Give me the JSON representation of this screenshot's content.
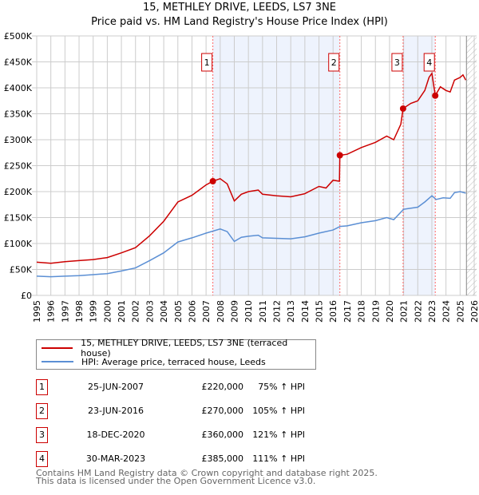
{
  "chart_data": {
    "type": "line",
    "title": "15, METHLEY DRIVE, LEEDS, LS7 3NE",
    "subtitle": "Price paid vs. HM Land Registry's House Price Index (HPI)",
    "xlim": [
      1995,
      2026
    ],
    "ylim": [
      0,
      500000
    ],
    "x_ticks": [
      "1995",
      "1996",
      "1997",
      "1998",
      "1999",
      "2000",
      "2001",
      "2002",
      "2003",
      "2004",
      "2005",
      "2006",
      "2007",
      "2008",
      "2009",
      "2010",
      "2011",
      "2012",
      "2013",
      "2014",
      "2015",
      "2016",
      "2017",
      "2018",
      "2019",
      "2020",
      "2021",
      "2022",
      "2023",
      "2024",
      "2025",
      "2026"
    ],
    "y_ticks": [
      {
        "v": 0,
        "label": "£0"
      },
      {
        "v": 50000,
        "label": "£50K"
      },
      {
        "v": 100000,
        "label": "£100K"
      },
      {
        "v": 150000,
        "label": "£150K"
      },
      {
        "v": 200000,
        "label": "£200K"
      },
      {
        "v": 250000,
        "label": "£250K"
      },
      {
        "v": 300000,
        "label": "£300K"
      },
      {
        "v": 350000,
        "label": "£350K"
      },
      {
        "v": 400000,
        "label": "£400K"
      },
      {
        "v": 450000,
        "label": "£450K"
      },
      {
        "v": 500000,
        "label": "£500K"
      }
    ],
    "grid": true,
    "legend_placement": "below",
    "series": [
      {
        "name": "15, METHLEY DRIVE, LEEDS, LS7 3NE (terraced house)",
        "color": "#cc0000",
        "x": [
          1995,
          1996,
          1997,
          1998,
          1999,
          2000,
          2001,
          2002,
          2003,
          2004,
          2005,
          2006,
          2007,
          2007.48,
          2008,
          2008.5,
          2009,
          2009.5,
          2010,
          2010.7,
          2011,
          2012,
          2013,
          2014,
          2015,
          2015.5,
          2016,
          2016.45,
          2016.48,
          2017,
          2018,
          2019,
          2019.8,
          2020.3,
          2020.8,
          2020.96,
          2021.5,
          2022,
          2022.5,
          2022.8,
          2023.0,
          2023.24,
          2023.6,
          2024,
          2024.3,
          2024.6,
          2025,
          2025.2,
          2025.4
        ],
        "y": [
          64000,
          62000,
          65000,
          67000,
          69000,
          73000,
          82000,
          92000,
          115000,
          143000,
          180000,
          193000,
          213000,
          220000,
          225000,
          215000,
          182000,
          195000,
          200000,
          203000,
          195000,
          192000,
          190000,
          196000,
          210000,
          207000,
          222000,
          220000,
          270000,
          272000,
          285000,
          295000,
          307000,
          300000,
          330000,
          360000,
          370000,
          375000,
          395000,
          420000,
          428000,
          385000,
          402000,
          395000,
          392000,
          415000,
          420000,
          425000,
          415000
        ]
      },
      {
        "name": "HPI: Average price, terraced house, Leeds",
        "color": "#5b8fd4",
        "x": [
          1995,
          1996,
          1997,
          1998,
          1999,
          2000,
          2001,
          2002,
          2003,
          2004,
          2005,
          2006,
          2007,
          2008,
          2008.5,
          2009,
          2009.5,
          2010,
          2010.7,
          2011,
          2012,
          2013,
          2014,
          2015,
          2016,
          2016.5,
          2017,
          2018,
          2019,
          2019.8,
          2020.3,
          2021,
          2022,
          2022.5,
          2023,
          2023.3,
          2023.8,
          2024.3,
          2024.6,
          2025,
          2025.4
        ],
        "y": [
          37000,
          36000,
          37000,
          38000,
          40000,
          42000,
          47000,
          53000,
          67000,
          82000,
          103000,
          111000,
          120000,
          128000,
          123000,
          104000,
          112000,
          114000,
          116000,
          111000,
          110000,
          109000,
          113000,
          120000,
          126000,
          133000,
          134000,
          140000,
          144000,
          150000,
          146000,
          166000,
          170000,
          180000,
          192000,
          185000,
          188000,
          187000,
          198000,
          200000,
          197000
        ]
      }
    ],
    "shaded_ranges": [
      [
        2007.48,
        2016.48
      ],
      [
        2020.96,
        2023.24
      ]
    ],
    "hatched_from": 2025.45,
    "sales": [
      {
        "label": "1",
        "x": 2007.48,
        "y": 220000
      },
      {
        "label": "2",
        "x": 2016.48,
        "y": 270000
      },
      {
        "label": "3",
        "x": 2020.96,
        "y": 360000
      },
      {
        "label": "4",
        "x": 2023.24,
        "y": 385000
      }
    ]
  },
  "table": [
    {
      "num": "1",
      "date": "25-JUN-2007",
      "price": "£220,000",
      "hpi": "75% ↑ HPI"
    },
    {
      "num": "2",
      "date": "23-JUN-2016",
      "price": "£270,000",
      "hpi": "105% ↑ HPI"
    },
    {
      "num": "3",
      "date": "18-DEC-2020",
      "price": "£360,000",
      "hpi": "121% ↑ HPI"
    },
    {
      "num": "4",
      "date": "30-MAR-2023",
      "price": "£385,000",
      "hpi": "111% ↑ HPI"
    }
  ],
  "footer": {
    "line1": "Contains HM Land Registry data © Crown copyright and database right 2025.",
    "line2": "This data is licensed under the Open Government Licence v3.0."
  }
}
